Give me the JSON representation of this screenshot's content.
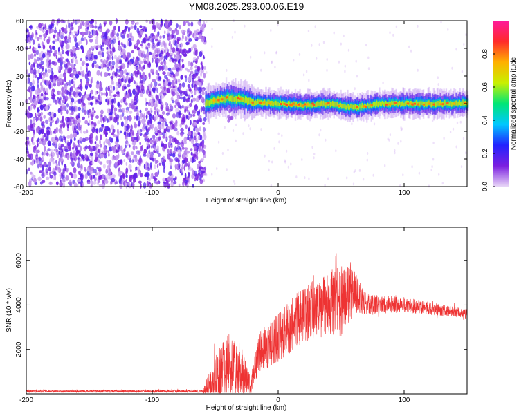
{
  "title": "YM08.2025.293.00.06.E19",
  "chart_data": [
    {
      "type": "heatmap",
      "name": "spectrogram",
      "xlabel": "Height of straight line (km)",
      "ylabel": "Frequency (Hz)",
      "xlim": [
        -200,
        150
      ],
      "ylim": [
        -60,
        60
      ],
      "xticks": [
        -200,
        -100,
        0,
        100
      ],
      "yticks": [
        -60,
        -40,
        -20,
        0,
        20,
        40,
        60
      ],
      "noise_region_x": [
        -200,
        -58
      ],
      "signal_band": {
        "x_start": -58,
        "center_hz": [
          {
            "x": -58,
            "y": 0
          },
          {
            "x": -50,
            "y": 2
          },
          {
            "x": -40,
            "y": 4
          },
          {
            "x": -30,
            "y": 3
          },
          {
            "x": -20,
            "y": 1
          },
          {
            "x": 0,
            "y": 0
          },
          {
            "x": 20,
            "y": -1
          },
          {
            "x": 40,
            "y": 0
          },
          {
            "x": 60,
            "y": -3
          },
          {
            "x": 80,
            "y": 0
          },
          {
            "x": 100,
            "y": 0
          },
          {
            "x": 120,
            "y": 0
          },
          {
            "x": 150,
            "y": 0
          }
        ]
      },
      "colorbar": {
        "label": "Normalized spectral amplitude",
        "range": [
          0,
          1
        ],
        "ticks": [
          "0.0",
          "0.2",
          "0.4",
          "0.6",
          "0.8"
        ],
        "colors": [
          "#e8d6f7",
          "#7b1fe0",
          "#2222ff",
          "#00c8ff",
          "#00e676",
          "#c8f000",
          "#ffb000",
          "#ff2a2a",
          "#ff1a9c"
        ]
      }
    },
    {
      "type": "line",
      "name": "snr",
      "xlabel": "Height of straight line (km)",
      "ylabel": "SNR (10 * v/v)",
      "xlim": [
        -200,
        150
      ],
      "ylim": [
        0,
        7500
      ],
      "xticks": [
        -200,
        -100,
        0,
        100
      ],
      "yticks": [
        2000,
        4000,
        6000
      ],
      "color": "#ee3333",
      "envelope": [
        {
          "x": -200,
          "base": 100,
          "amp": 120
        },
        {
          "x": -60,
          "base": 100,
          "amp": 120
        },
        {
          "x": -48,
          "base": 300,
          "amp": 2500
        },
        {
          "x": -40,
          "base": 900,
          "amp": 2800
        },
        {
          "x": -30,
          "base": 700,
          "amp": 2600
        },
        {
          "x": -22,
          "base": 200,
          "amp": 800
        },
        {
          "x": -15,
          "base": 1600,
          "amp": 1800
        },
        {
          "x": 0,
          "base": 2200,
          "amp": 2200
        },
        {
          "x": 20,
          "base": 3200,
          "amp": 2600
        },
        {
          "x": 40,
          "base": 3600,
          "amp": 2800
        },
        {
          "x": 50,
          "base": 3800,
          "amp": 3500
        },
        {
          "x": 60,
          "base": 4300,
          "amp": 2000
        },
        {
          "x": 70,
          "base": 3900,
          "amp": 900
        },
        {
          "x": 100,
          "base": 3900,
          "amp": 700
        },
        {
          "x": 150,
          "base": 3550,
          "amp": 400
        }
      ]
    }
  ]
}
